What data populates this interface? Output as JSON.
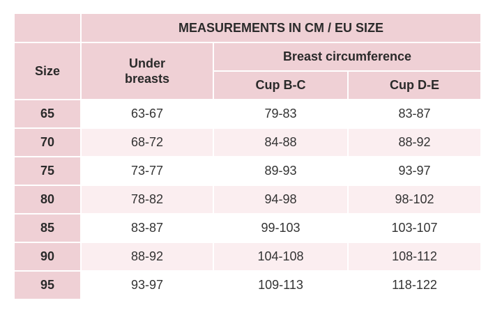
{
  "header": {
    "title": "MEASUREMENTS IN CM / EU SIZE",
    "size_label": "Size",
    "under_breasts_label": "Under breasts",
    "breast_circumference_label": "Breast circumference",
    "cup_bc_label": "Cup B-C",
    "cup_de_label": "Cup D-E"
  },
  "rows": [
    {
      "size": "65",
      "under": "63-67",
      "bc": "79-83",
      "de": "83-87"
    },
    {
      "size": "70",
      "under": "68-72",
      "bc": "84-88",
      "de": "88-92"
    },
    {
      "size": "75",
      "under": "73-77",
      "bc": "89-93",
      "de": "93-97"
    },
    {
      "size": "80",
      "under": "78-82",
      "bc": "94-98",
      "de": "98-102"
    },
    {
      "size": "85",
      "under": "83-87",
      "bc": "99-103",
      "de": "103-107"
    },
    {
      "size": "90",
      "under": "88-92",
      "bc": "104-108",
      "de": "108-112"
    },
    {
      "size": "95",
      "under": "93-97",
      "bc": "109-113",
      "de": "118-122"
    }
  ],
  "colors": {
    "header_bg": "#efd0d5",
    "alt_row_bg": "#fbeef0",
    "row_bg": "#ffffff"
  }
}
